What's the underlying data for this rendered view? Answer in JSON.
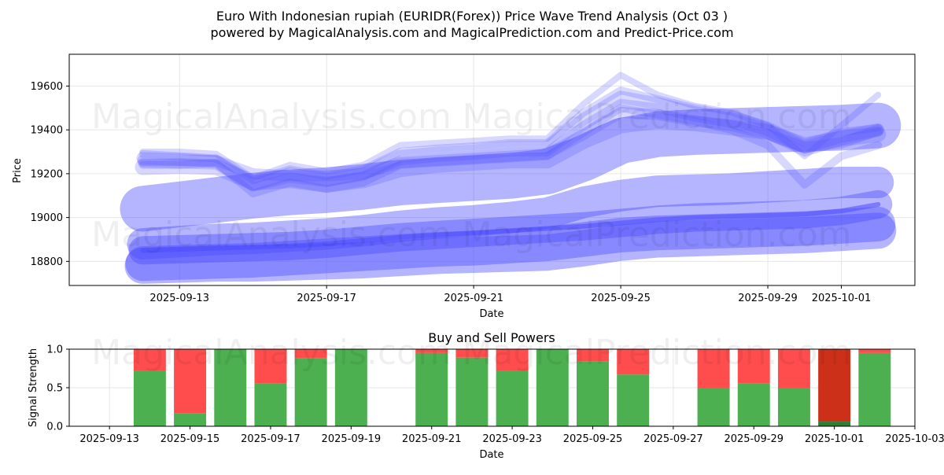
{
  "title_line1": "Euro With Indonesian rupiah (EURIDR(Forex)) Price Wave Trend Analysis (Oct 03 )",
  "title_line2": "powered by MagicalAnalysis.com and MagicalPrediction.com and Predict-Price.com",
  "watermark_left": "MagicalAnalysis.com",
  "watermark_right": "MagicalPrediction.com",
  "colors": {
    "wave": "#4d4dff",
    "buy": "#4caf50",
    "sell": "#ff4d4d",
    "sell_strong": "#cc3019",
    "buy_strong": "#2e7d32"
  },
  "chart_data": [
    {
      "type": "line",
      "xlabel": "Date",
      "ylabel": "Price",
      "x_ticks": [
        "2025-09-13",
        "2025-09-17",
        "2025-09-21",
        "2025-09-25",
        "2025-09-29",
        "2025-10-01"
      ],
      "y_ticks": [
        18800,
        19000,
        19200,
        19400,
        19600
      ],
      "xlim": [
        "2025-09-10",
        "2025-10-03"
      ],
      "ylim": [
        18690,
        19745
      ],
      "grid": true,
      "dates": [
        "2025-09-12",
        "2025-09-13",
        "2025-09-14",
        "2025-09-15",
        "2025-09-16",
        "2025-09-17",
        "2025-09-18",
        "2025-09-19",
        "2025-09-20",
        "2025-09-21",
        "2025-09-22",
        "2025-09-23",
        "2025-09-24",
        "2025-09-25",
        "2025-09-26",
        "2025-09-27",
        "2025-09-28",
        "2025-09-29",
        "2025-09-30",
        "2025-10-01",
        "2025-10-02"
      ],
      "series": [
        {
          "values": [
            19270,
            19265,
            19255,
            19150,
            19200,
            19170,
            19200,
            19280,
            19295,
            19305,
            19320,
            19320,
            19450,
            19550,
            19520,
            19480,
            19450,
            19400,
            19320,
            19370,
            19400
          ]
        },
        {
          "values": [
            19250,
            19245,
            19240,
            19140,
            19180,
            19160,
            19190,
            19260,
            19275,
            19285,
            19300,
            19300,
            19420,
            19520,
            19500,
            19460,
            19430,
            19380,
            19300,
            19350,
            19390
          ]
        },
        {
          "values": [
            19290,
            19280,
            19270,
            19170,
            19220,
            19190,
            19220,
            19300,
            19315,
            19325,
            19340,
            19340,
            19480,
            19580,
            19540,
            19500,
            19470,
            19420,
            19340,
            19390,
            19410
          ]
        },
        {
          "values": [
            19230,
            19235,
            19230,
            19160,
            19170,
            19150,
            19170,
            19220,
            19240,
            19250,
            19260,
            19260,
            19350,
            19420,
            19440,
            19430,
            19410,
            19390,
            19330,
            19360,
            19380
          ]
        },
        {
          "values": [
            19300,
            19300,
            19290,
            19180,
            19240,
            19210,
            19240,
            19330,
            19340,
            19350,
            19360,
            19360,
            19520,
            19650,
            19560,
            19510,
            19480,
            19420,
            19280,
            19420,
            19560
          ]
        },
        {
          "values": [
            19260,
            19260,
            19260,
            19200,
            19190,
            19190,
            19200,
            19250,
            19260,
            19270,
            19280,
            19290,
            19380,
            19480,
            19470,
            19440,
            19420,
            19380,
            19320,
            19340,
            19400
          ]
        },
        {
          "values": [
            19240,
            19240,
            19250,
            19110,
            19160,
            19130,
            19160,
            19240,
            19250,
            19260,
            19270,
            19280,
            19390,
            19500,
            19470,
            19440,
            19400,
            19330,
            19150,
            19280,
            19330
          ]
        }
      ],
      "trend_bands": [
        {
          "values": [
            19040,
            19060,
            19080,
            19100,
            19115,
            19125,
            19140,
            19160,
            19170,
            19180,
            19190,
            19210,
            19270,
            19350,
            19380,
            19390,
            19395,
            19400,
            19405,
            19410,
            19420
          ]
        },
        {
          "values": [
            18880,
            18890,
            18900,
            18905,
            18915,
            18925,
            18940,
            18960,
            18975,
            18985,
            19000,
            19020,
            19070,
            19100,
            19120,
            19125,
            19130,
            19140,
            19150,
            19160,
            19160
          ]
        },
        {
          "values": [
            18850,
            18855,
            18860,
            18865,
            18870,
            18880,
            18895,
            18910,
            18920,
            18930,
            18940,
            18950,
            18960,
            18975,
            18990,
            19000,
            19005,
            19010,
            19015,
            19030,
            19060
          ]
        },
        {
          "values": [
            18780,
            18785,
            18790,
            18790,
            18795,
            18800,
            18805,
            18815,
            18825,
            18830,
            18835,
            18840,
            18860,
            18885,
            18900,
            18905,
            18910,
            18915,
            18920,
            18930,
            18940
          ]
        },
        {
          "values": [
            18790,
            18795,
            18800,
            18805,
            18815,
            18825,
            18835,
            18845,
            18855,
            18860,
            18870,
            18880,
            18900,
            18920,
            18930,
            18935,
            18940,
            18945,
            18950,
            18960,
            18970
          ]
        }
      ]
    },
    {
      "type": "bar",
      "title": "Buy and Sell Powers",
      "xlabel": "Date",
      "ylabel": "Signal Strength",
      "x_ticks": [
        "2025-09-13",
        "2025-09-15",
        "2025-09-17",
        "2025-09-19",
        "2025-09-21",
        "2025-09-23",
        "2025-09-25",
        "2025-09-27",
        "2025-09-29",
        "2025-10-01",
        "2025-10-03"
      ],
      "y_ticks": [
        "0.0",
        "0.5",
        "1.0"
      ],
      "xlim": [
        "2025-09-12",
        "2025-10-03"
      ],
      "ylim": [
        0,
        1
      ],
      "grid": true,
      "dates": [
        "2025-09-14",
        "2025-09-15",
        "2025-09-16",
        "2025-09-17",
        "2025-09-18",
        "2025-09-19",
        "2025-09-21",
        "2025-09-22",
        "2025-09-23",
        "2025-09-24",
        "2025-09-25",
        "2025-09-26",
        "2025-09-28",
        "2025-09-29",
        "2025-09-30",
        "2025-10-01",
        "2025-10-02"
      ],
      "buy": [
        0.72,
        0.17,
        1.0,
        0.56,
        0.88,
        1.0,
        0.95,
        0.89,
        0.72,
        1.0,
        0.84,
        0.67,
        0.5,
        0.56,
        0.5,
        0.06,
        0.95
      ],
      "strong_index": 15
    }
  ]
}
